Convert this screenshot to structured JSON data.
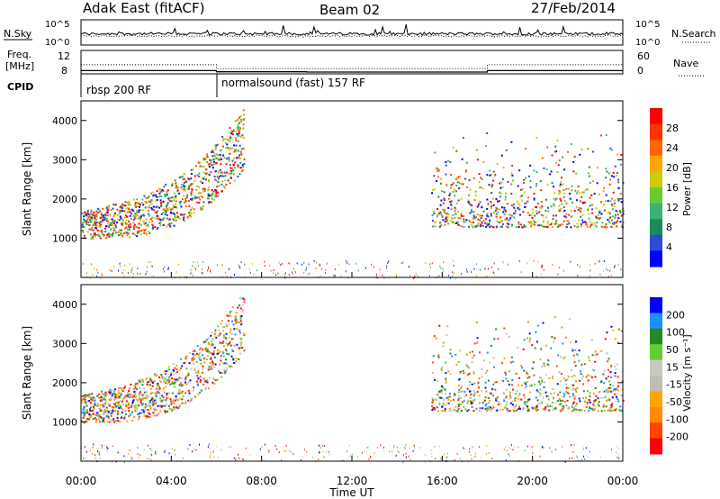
{
  "header": {
    "title": "Adak East (fitACF)",
    "beam": "Beam 02",
    "date": "27/Feb/2014"
  },
  "colors": {
    "axis": "#000000",
    "mark": "#000000",
    "power_scale": [
      "#0000ff",
      "#2a4bd7",
      "#1e8a5a",
      "#3cb371",
      "#66cc33",
      "#cccc00",
      "#ffa500",
      "#ff6600",
      "#ff3300",
      "#ff0000"
    ],
    "velocity_scale": [
      "#0000ff",
      "#1e90ff",
      "#228b22",
      "#66cc33",
      "#c8c8c0",
      "#bdbdb5",
      "#ffa500",
      "#ff8c00",
      "#ff4500",
      "#ff0000"
    ]
  },
  "chart_data": [
    {
      "type": "line",
      "name": "nsky_nsearch",
      "left_label": "N.Sky",
      "right_label": "N.Search",
      "left_ticks": [
        "10^5",
        "10^0"
      ],
      "right_ticks": [
        "10^5",
        "10^0"
      ]
    },
    {
      "type": "line",
      "name": "freq_nave",
      "left_label_lines": [
        "Freq.",
        "[MHz]"
      ],
      "right_label": "Nave",
      "left_ticks": [
        "12",
        "8"
      ],
      "right_ticks": [
        "60",
        "0"
      ],
      "x_hours": [
        0,
        6,
        6,
        10,
        10,
        18,
        18,
        24
      ],
      "freq_mhz": [
        10.4,
        10.4,
        10.2,
        10.2,
        8.8,
        8.8,
        10.4,
        10.4
      ],
      "nave": [
        22,
        22,
        10,
        10,
        10,
        10,
        22,
        22
      ]
    },
    {
      "type": "table",
      "name": "cpid",
      "label": "CPID",
      "segments": [
        {
          "start_hour": 0,
          "end_hour": 6,
          "text": "rbsp 200 RF"
        },
        {
          "start_hour": 6,
          "end_hour": 24,
          "text": "normalsound (fast) 157 RF"
        }
      ]
    },
    {
      "type": "heatmap",
      "name": "power",
      "ylabel": "Slant Range [km]",
      "ylim": [
        0,
        4500
      ],
      "yticks": [
        1000,
        2000,
        3000,
        4000
      ],
      "colorbar": {
        "label": "Power [dB]",
        "ticks": [
          "4",
          "8",
          "12",
          "16",
          "20",
          "24",
          "28"
        ]
      }
    },
    {
      "type": "heatmap",
      "name": "velocity",
      "ylabel": "Slant Range [km]",
      "ylim": [
        0,
        4500
      ],
      "yticks": [
        1000,
        2000,
        3000,
        4000
      ],
      "colorbar": {
        "label": "Velocity [m s⁻¹]",
        "ticks": [
          "200",
          "100",
          "50",
          "15",
          "-15",
          "-50",
          "-100",
          "-200"
        ]
      }
    }
  ],
  "xaxis": {
    "label": "Time UT",
    "xlim_hours": [
      0,
      24
    ],
    "ticks": [
      {
        "hour": 0,
        "label": "00:00"
      },
      {
        "hour": 4,
        "label": "04:00"
      },
      {
        "hour": 8,
        "label": "08:00"
      },
      {
        "hour": 12,
        "label": "12:00"
      },
      {
        "hour": 16,
        "label": "16:00"
      },
      {
        "hour": 20,
        "label": "20:00"
      },
      {
        "hour": 24,
        "label": "00:00"
      }
    ]
  }
}
